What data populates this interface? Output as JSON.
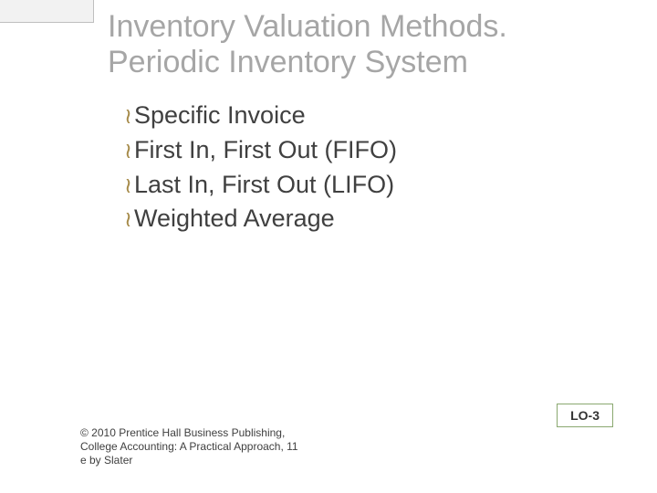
{
  "colors": {
    "title_color": "#a6a6a6",
    "body_text_color": "#404040",
    "bullet_mark_color": "#a68b4a",
    "lo_border_color": "#8aa870",
    "tab_border_color": "#bfbfbf",
    "tab_fill_color": "#f2f2f2",
    "background": "#ffffff"
  },
  "typography": {
    "title_fontsize": 34,
    "bullet_fontsize": 27,
    "footer_fontsize": 12,
    "lo_fontsize": 14
  },
  "title": {
    "line1": "Inventory Valuation Methods.",
    "line2": "Periodic Inventory System"
  },
  "bullets": {
    "mark": "≀",
    "items": [
      "Specific Invoice",
      "First In, First Out (FIFO)",
      "Last In, First Out (LIFO)",
      "Weighted Average"
    ]
  },
  "footer": "© 2010 Prentice Hall Business Publishing, College Accounting: A Practical Approach, 11 e by Slater",
  "lo_box": "LO-3"
}
